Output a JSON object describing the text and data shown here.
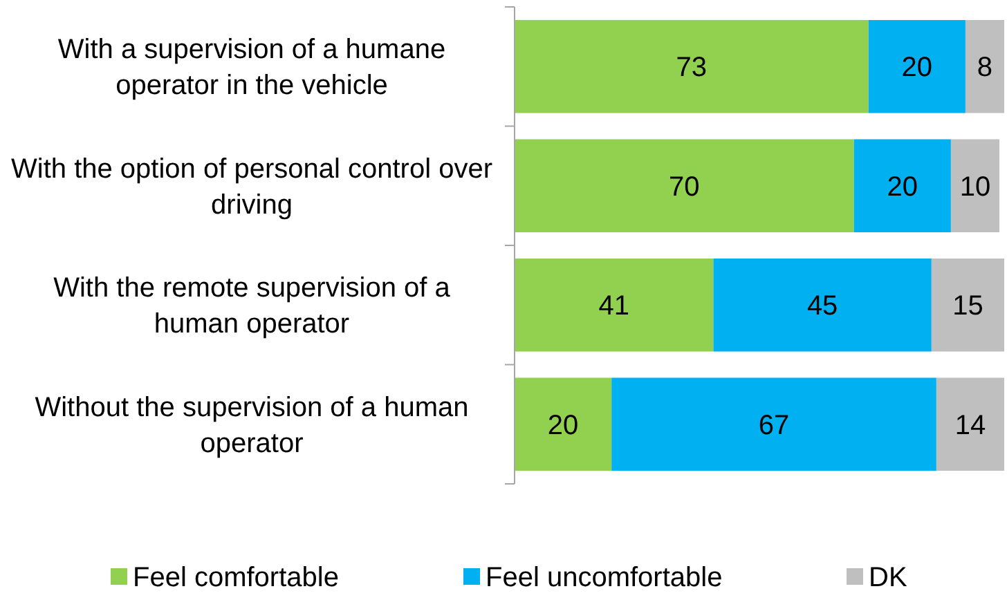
{
  "chart_data": {
    "type": "bar",
    "orientation": "horizontal",
    "stacked": true,
    "data_labels": true,
    "legend": "bottom",
    "categories": [
      "With a supervision of a humane operator in the vehicle",
      "With the option of personal control over driving",
      "With the remote supervision of a human operator",
      "Without the supervision of a human operator"
    ],
    "series": [
      {
        "name": "Feel comfortable",
        "color": "#92d050",
        "values": [
          73,
          70,
          41,
          20
        ]
      },
      {
        "name": "Feel uncomfortable",
        "color": "#00b0f0",
        "values": [
          20,
          20,
          45,
          67
        ]
      },
      {
        "name": "DK",
        "color": "#bfbfbf",
        "values": [
          8,
          10,
          15,
          14
        ]
      }
    ]
  }
}
